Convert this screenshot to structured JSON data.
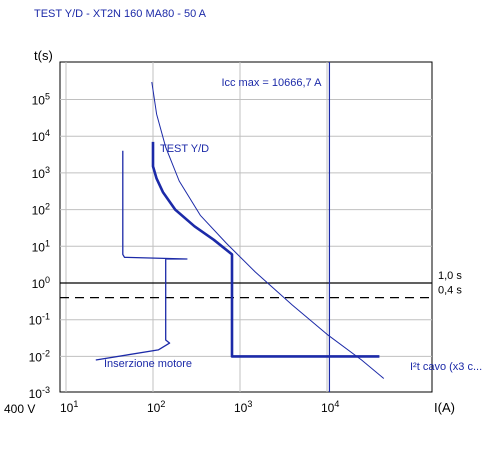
{
  "chart_data": {
    "type": "line",
    "title": "TEST Y/D - XT2N 160 MA80 - 50 A",
    "xlabel": "I(A)",
    "ylabel": "t(s)",
    "voltage_label": "400 V",
    "x_scale": "log",
    "y_scale": "log",
    "xlim": [
      10,
      50000
    ],
    "ylim": [
      0.001,
      500000
    ],
    "grid": true,
    "x_ticks": [
      {
        "value": 10,
        "base": "10",
        "exp": "1"
      },
      {
        "value": 100,
        "base": "10",
        "exp": "2"
      },
      {
        "value": 1000,
        "base": "10",
        "exp": "3"
      },
      {
        "value": 10000,
        "base": "10",
        "exp": "4"
      }
    ],
    "y_ticks": [
      {
        "value": 100000,
        "base": "10",
        "exp": "5"
      },
      {
        "value": 10000,
        "base": "10",
        "exp": "4"
      },
      {
        "value": 1000,
        "base": "10",
        "exp": "3"
      },
      {
        "value": 100,
        "base": "10",
        "exp": "2"
      },
      {
        "value": 10,
        "base": "10",
        "exp": "1"
      },
      {
        "value": 1,
        "base": "10",
        "exp": "0"
      },
      {
        "value": 0.1,
        "base": "10",
        "exp": "-1"
      },
      {
        "value": 0.01,
        "base": "10",
        "exp": "-2"
      },
      {
        "value": 0.001,
        "base": "10",
        "exp": "-3"
      }
    ],
    "vertical_lines": [
      {
        "value": 10666.7,
        "label": "Icc max = 10666,7 A",
        "color": "#1c2aa8"
      }
    ],
    "horizontal_lines": [
      {
        "value": 1.0,
        "label": "1,0 s",
        "style": "solid",
        "color": "#000000"
      },
      {
        "value": 0.4,
        "label": "0,4 s",
        "style": "dashed",
        "color": "#000000"
      }
    ],
    "series": [
      {
        "name": "TEST Y/D",
        "color": "#1c2aa8",
        "width": 2.6,
        "points": [
          [
            100,
            7000
          ],
          [
            100,
            1500
          ],
          [
            110,
            700
          ],
          [
            130,
            300
          ],
          [
            180,
            100
          ],
          [
            300,
            35
          ],
          [
            500,
            15
          ],
          [
            810,
            6
          ],
          [
            810,
            0.01
          ],
          [
            40000,
            0.01
          ]
        ]
      },
      {
        "name": "I²t cavo (x3 c...",
        "color": "#1c2aa8",
        "width": 1.0,
        "points": [
          [
            97,
            300000
          ],
          [
            110,
            40000
          ],
          [
            140,
            5000
          ],
          [
            200,
            600
          ],
          [
            350,
            70
          ],
          [
            700,
            12
          ],
          [
            1500,
            2
          ],
          [
            4000,
            0.25
          ],
          [
            10000,
            0.04
          ],
          [
            25000,
            0.008
          ],
          [
            45000,
            0.0025
          ]
        ]
      },
      {
        "name": "Inserzione motore",
        "color": "#1c2aa8",
        "width": 1.3,
        "points": [
          [
            45,
            4000
          ],
          [
            45,
            6
          ],
          [
            47,
            5
          ],
          [
            245,
            4.5
          ],
          [
            140,
            4.5
          ],
          [
            140,
            0.028
          ],
          [
            155,
            0.023
          ],
          [
            115,
            0.015
          ],
          [
            22,
            0.008
          ]
        ]
      }
    ]
  },
  "colors": {
    "curve": "#1c2aa8",
    "grid": "#c0c0c0",
    "axis_text": "#000000"
  }
}
